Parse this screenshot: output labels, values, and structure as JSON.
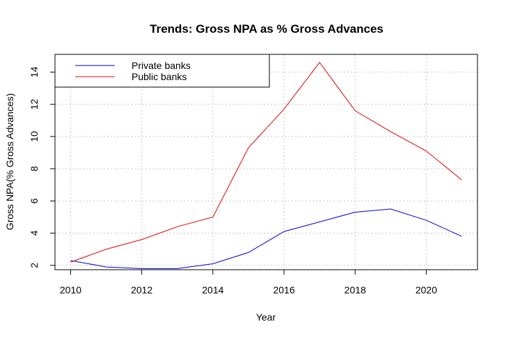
{
  "chart_data": {
    "type": "line",
    "title": "Trends: Gross NPA as % Gross Advances",
    "xlabel": "Year",
    "ylabel": "Gross NPA(% Gross Advances)",
    "x": [
      2010,
      2011,
      2012,
      2013,
      2014,
      2015,
      2016,
      2017,
      2018,
      2019,
      2020,
      2021
    ],
    "xlim": [
      2009.56,
      2021.44
    ],
    "ylim": [
      1.73,
      15.1
    ],
    "xticks": [
      2010,
      2012,
      2014,
      2016,
      2018,
      2020
    ],
    "yticks": [
      2,
      4,
      6,
      8,
      10,
      12,
      14
    ],
    "grid": true,
    "legend": "top-left",
    "series": [
      {
        "name": "Private banks",
        "color": "#0000cc",
        "values": [
          2.3,
          1.9,
          1.8,
          1.8,
          2.1,
          2.8,
          4.1,
          4.7,
          5.3,
          5.5,
          4.8,
          3.8
        ]
      },
      {
        "name": "Public banks",
        "color": "#dd0000",
        "values": [
          2.2,
          3.0,
          3.6,
          4.4,
          5.0,
          9.3,
          11.7,
          14.6,
          11.6,
          10.3,
          9.1,
          7.3
        ]
      }
    ]
  }
}
